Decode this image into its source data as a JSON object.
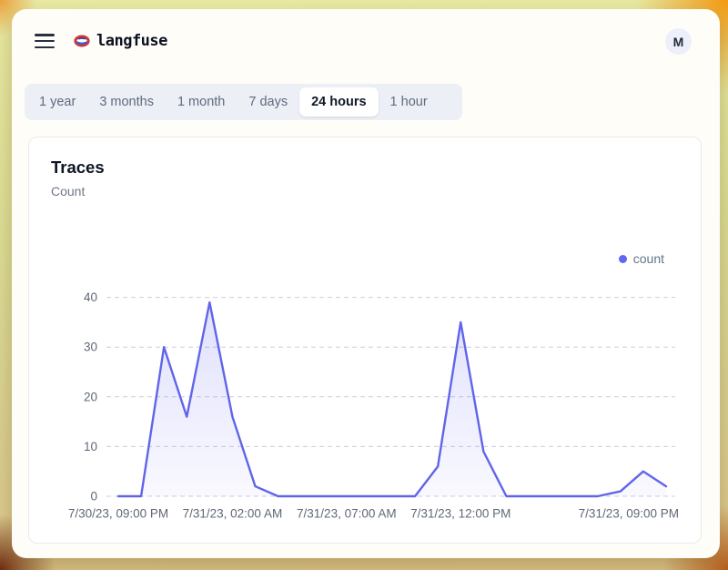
{
  "header": {
    "brand": "langfuse",
    "avatar_initial": "M"
  },
  "time_tabs": {
    "items": [
      {
        "label": "1 year",
        "active": false
      },
      {
        "label": "3 months",
        "active": false
      },
      {
        "label": "1 month",
        "active": false
      },
      {
        "label": "7 days",
        "active": false
      },
      {
        "label": "24 hours",
        "active": true
      },
      {
        "label": "1 hour",
        "active": false
      }
    ]
  },
  "card": {
    "title": "Traces",
    "subtitle": "Count"
  },
  "legend": {
    "label": "count",
    "color": "#6366f1"
  },
  "chart_data": {
    "type": "area",
    "title": "Traces",
    "ylabel": "Count",
    "series": [
      {
        "name": "count",
        "color": "#6065e8",
        "values": [
          0,
          0,
          30,
          16,
          39,
          16,
          2,
          0,
          0,
          0,
          0,
          0,
          0,
          0,
          6,
          35,
          9,
          0,
          0,
          0,
          0,
          0,
          1,
          5,
          2
        ]
      }
    ],
    "x_interval": "hourly",
    "x_tick_labels": [
      {
        "index": 0,
        "label": "7/30/23, 09:00 PM"
      },
      {
        "index": 5,
        "label": "7/31/23, 02:00 AM"
      },
      {
        "index": 10,
        "label": "7/31/23, 07:00 AM"
      },
      {
        "index": 15,
        "label": "7/31/23, 12:00 PM"
      },
      {
        "index": 24,
        "label": "7/31/23, 09:00 PM"
      }
    ],
    "y_ticks": [
      0,
      10,
      20,
      30,
      40
    ],
    "ylim": [
      0,
      40
    ],
    "grid": "horizontal-dashed",
    "legend_position": "top-right"
  }
}
